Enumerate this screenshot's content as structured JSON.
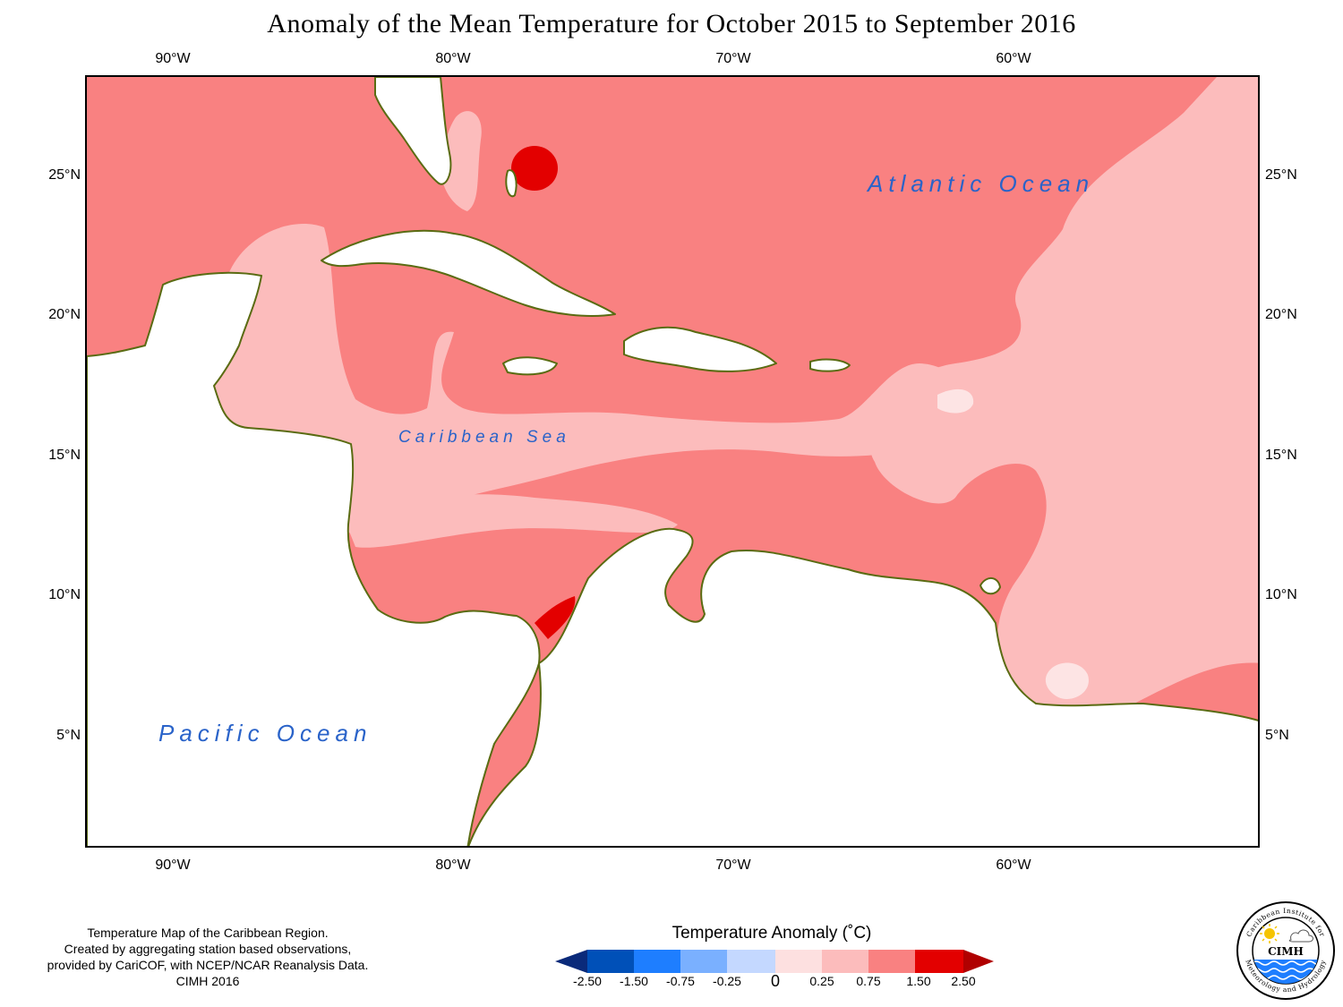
{
  "title": "Anomaly of the Mean Temperature for October 2015 to September 2016",
  "map": {
    "longitude_labels": [
      "90°W",
      "80°W",
      "70°W",
      "60°W"
    ],
    "latitude_labels": [
      "25°N",
      "20°N",
      "15°N",
      "10°N",
      "5°N"
    ],
    "longitude_range": [
      -93,
      -51
    ],
    "latitude_range": [
      1.0,
      28.6
    ],
    "ocean_labels": {
      "atlantic": "Atlantic Ocean",
      "caribbean": "Caribbean Sea",
      "pacific": "Pacific Ocean"
    },
    "colors": {
      "land": "#ffffff",
      "coastline": "#5a6b12",
      "band_0_to_0_25": "#fde4e4",
      "band_0_25_to_0_75": "#fcbcbc",
      "band_0_75_to_1_50": "#f98181",
      "band_1_50_to_2_50": "#e30000"
    }
  },
  "credits": [
    "Temperature Map of the Caribbean Region.",
    "Created by aggregating station based observations,",
    "provided by CariCOF, with NCEP/NCAR Reanalysis Data.",
    "CIMH 2016"
  ],
  "legend": {
    "title": "Temperature Anomaly (˚C)",
    "ticks": [
      "-2.50",
      "-1.50",
      "-0.75",
      "-0.25",
      "0",
      "0.25",
      "0.75",
      "1.50",
      "2.50"
    ],
    "colors": [
      "#0a2a7a",
      "#0050b8",
      "#1e7eff",
      "#7ab0ff",
      "#c4d8ff",
      "#fde0e0",
      "#fcbcbc",
      "#f98181",
      "#e30000",
      "#b00000"
    ]
  },
  "logo": {
    "name": "CIMH",
    "ring_text_top": "Caribbean Institute for",
    "ring_text_bottom": "Meteorology and Hydrology",
    "icons": [
      "sun-icon",
      "cloud-icon",
      "waves-icon"
    ]
  }
}
